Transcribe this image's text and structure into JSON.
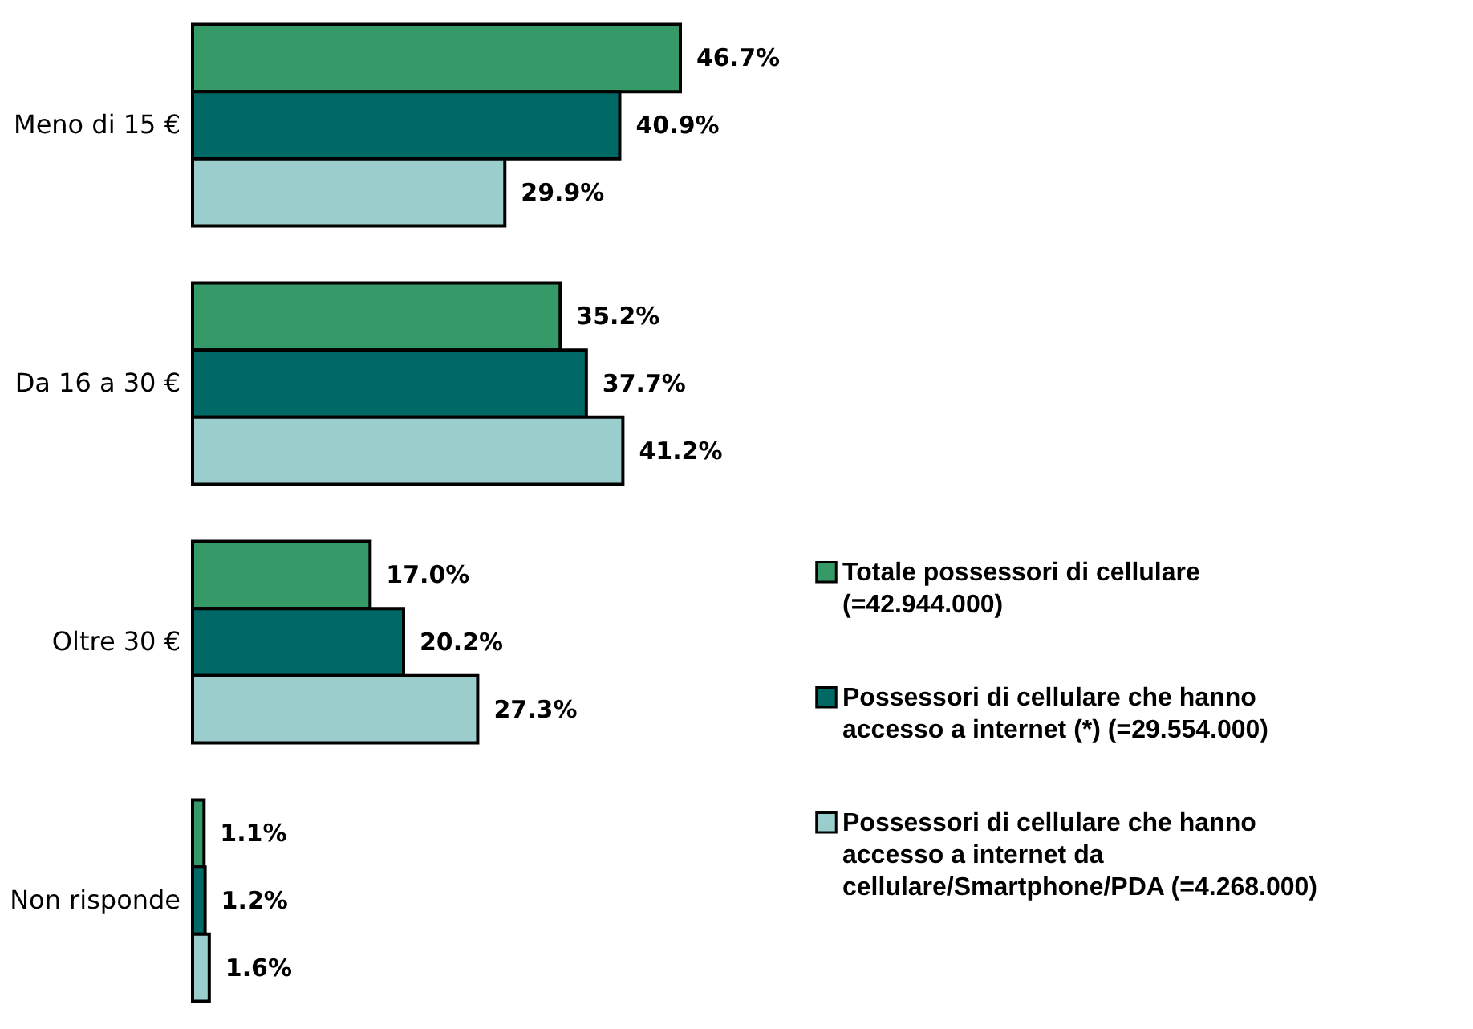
{
  "chart_data": {
    "type": "bar",
    "orientation": "horizontal",
    "legend": "right",
    "categories": [
      "Meno di 15 €",
      "Da 16 a 30 €",
      "Oltre 30 €",
      "Non risponde"
    ],
    "series": [
      {
        "name": "Totale possessori di cellulare (=42.944.000)",
        "color": "#359a67",
        "values": [
          46.7,
          35.2,
          17.0,
          1.1
        ],
        "value_labels": [
          "46.7%",
          "35.2%",
          "17.0%",
          "1.1%"
        ]
      },
      {
        "name": "Possessori di cellulare che hanno accesso a internet (*) (=29.554.000)",
        "color": "#006966",
        "values": [
          40.9,
          37.7,
          20.2,
          1.2
        ],
        "value_labels": [
          "40.9%",
          "37.7%",
          "20.2%",
          "1.2%"
        ]
      },
      {
        "name": "Possessori di cellulare che hanno accesso a internet da cellulare/Smartphone/PDA (=4.268.000)",
        "color": "#9bcdcd",
        "values": [
          29.9,
          41.2,
          27.3,
          1.6
        ],
        "value_labels": [
          "29.9%",
          "41.2%",
          "27.3%",
          "1.6%"
        ]
      }
    ]
  }
}
